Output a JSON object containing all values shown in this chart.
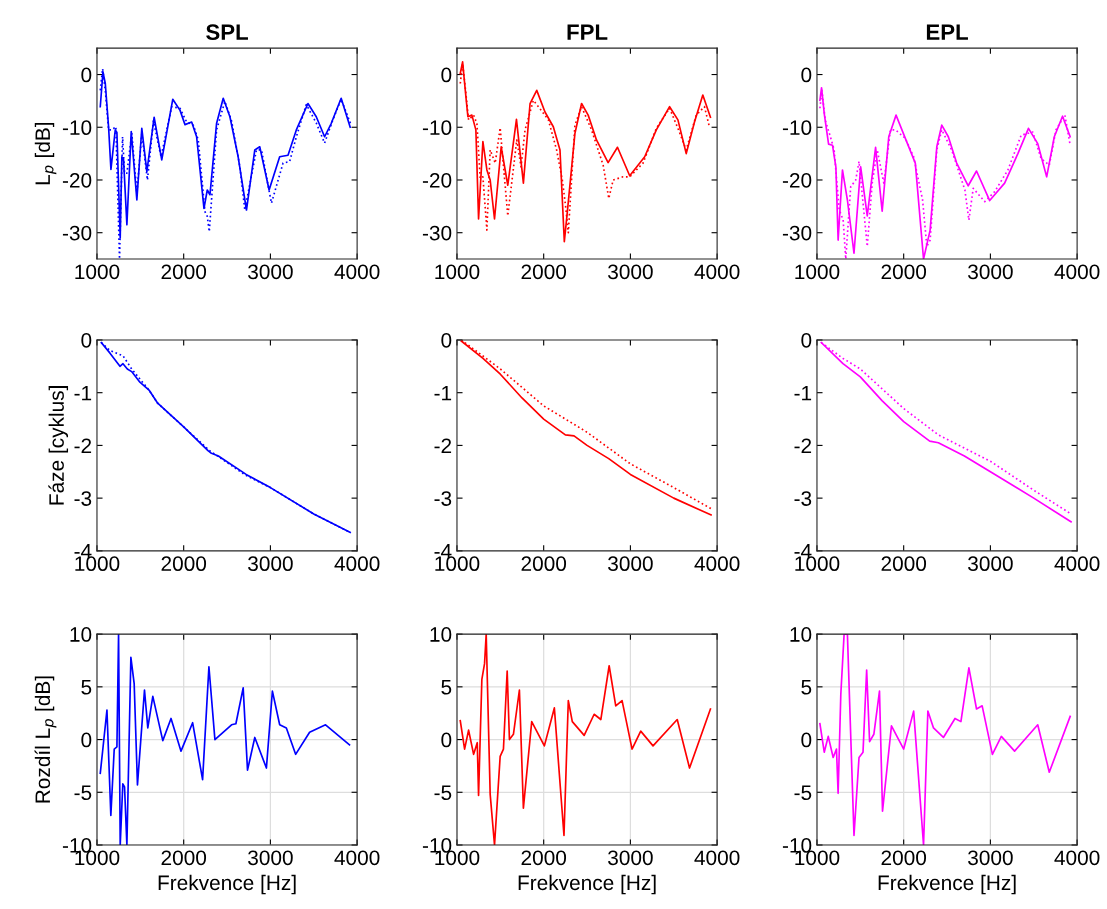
{
  "chart_data": [
    {
      "type": "line",
      "title": "SPL",
      "ylabel": "L$_{p}$ [dB]",
      "xlim": [
        1000,
        4000
      ],
      "xticks": [
        1000,
        2000,
        3000,
        4000
      ],
      "ylim": [
        -35,
        5
      ],
      "yticks": [
        -30,
        -20,
        -10,
        0
      ],
      "grid": false,
      "series": [
        {
          "color": "#0000ff",
          "line_style": "solid",
          "x": [
            1038,
            1069,
            1096,
            1134,
            1161,
            1211,
            1230,
            1268,
            1287,
            1306,
            1345,
            1395,
            1460,
            1517,
            1575,
            1659,
            1747,
            1874,
            1958,
            2015,
            2092,
            2149,
            2234,
            2272,
            2303,
            2379,
            2456,
            2533,
            2628,
            2724,
            2820,
            2877,
            2985,
            3107,
            3203,
            3299,
            3433,
            3529,
            3625,
            3701,
            3816,
            3920
          ],
          "values": [
            -6.1,
            0.5,
            -1.7,
            -10,
            -18,
            -10.5,
            -11,
            -31,
            -15.6,
            -16,
            -28.5,
            -10.8,
            -23.8,
            -10.2,
            -18.4,
            -8.1,
            -16.2,
            -4.7,
            -6.8,
            -9.5,
            -9,
            -11.8,
            -25.4,
            -21.9,
            -22.8,
            -9.3,
            -4.5,
            -8,
            -15.6,
            -25.7,
            -14.3,
            -13.7,
            -21.9,
            -15.6,
            -15.3,
            -10.5,
            -5.5,
            -8,
            -11.8,
            -9.3,
            -4.5,
            -10
          ]
        },
        {
          "color": "#0000ff",
          "line_style": "dotted",
          "x": [
            1038,
            1065,
            1096,
            1134,
            1172,
            1218,
            1260,
            1295,
            1318,
            1345,
            1402,
            1460,
            1517,
            1582,
            1651,
            1739,
            1862,
            1958,
            2034,
            2111,
            2168,
            2245,
            2272,
            2295,
            2379,
            2475,
            2552,
            2648,
            2705,
            2839,
            2897,
            3012,
            3146,
            3222,
            3299,
            3414,
            3529,
            3625,
            3720,
            3816,
            3931
          ],
          "values": [
            -3,
            1.1,
            -3,
            -10.5,
            -10.5,
            -9.9,
            -35,
            -11.8,
            -18.7,
            -18.7,
            -11.2,
            -22.5,
            -11.2,
            -20,
            -8.8,
            -15.6,
            -6.1,
            -6.4,
            -9,
            -9.6,
            -12.4,
            -26,
            -26.9,
            -29.8,
            -10.5,
            -5.1,
            -8.8,
            -17.5,
            -25.7,
            -14.3,
            -14.3,
            -24.4,
            -16.8,
            -16.5,
            -11.8,
            -5.7,
            -9.2,
            -13,
            -8.6,
            -4.7,
            -9.6
          ]
        }
      ]
    },
    {
      "type": "line",
      "title": "FPL",
      "xlim": [
        1000,
        4000
      ],
      "xticks": [
        1000,
        2000,
        3000,
        4000
      ],
      "ylim": [
        -35,
        5
      ],
      "yticks": [
        -30,
        -20,
        -10,
        0
      ],
      "grid": false,
      "series": [
        {
          "color": "#ff0000",
          "line_style": "solid",
          "x": [
            1038,
            1065,
            1096,
            1126,
            1172,
            1218,
            1249,
            1299,
            1345,
            1383,
            1433,
            1510,
            1586,
            1686,
            1766,
            1843,
            1920,
            2015,
            2111,
            2188,
            2238,
            2272,
            2360,
            2437,
            2513,
            2609,
            2743,
            2851,
            2992,
            3165,
            3299,
            3452,
            3548,
            3644,
            3739,
            3835,
            3923
          ],
          "values": [
            0.2,
            2.4,
            -3,
            -8,
            -7.7,
            -10.5,
            -27.4,
            -12.7,
            -18.1,
            -20,
            -27.4,
            -13.7,
            -21,
            -8.5,
            -20.6,
            -5.5,
            -3,
            -7.1,
            -9.9,
            -14.3,
            -31.7,
            -26.2,
            -11.2,
            -5.5,
            -7.7,
            -12.4,
            -16.7,
            -13.8,
            -19.2,
            -15.6,
            -10.5,
            -6.1,
            -8.6,
            -15,
            -9,
            -3.9,
            -8.1
          ]
        },
        {
          "color": "#ff0000",
          "line_style": "dotted",
          "x": [
            1038,
            1065,
            1103,
            1134,
            1192,
            1230,
            1268,
            1299,
            1345,
            1383,
            1441,
            1498,
            1586,
            1690,
            1739,
            1785,
            1881,
            1939,
            2054,
            2149,
            2215,
            2253,
            2284,
            2360,
            2437,
            2552,
            2686,
            2751,
            2801,
            2916,
            2992,
            3146,
            3299,
            3452,
            3548,
            3644,
            3759,
            3854,
            3912
          ],
          "values": [
            -1.7,
            2.1,
            -3.6,
            -8.6,
            -7.7,
            -9.3,
            -19.7,
            -19.4,
            -29.5,
            -14.3,
            -16.8,
            -10.1,
            -26.8,
            -12.4,
            -17.5,
            -10.5,
            -4.9,
            -6.1,
            -8.6,
            -14.3,
            -20,
            -25,
            -30,
            -9.6,
            -6.1,
            -10.5,
            -17.2,
            -23.5,
            -20,
            -19.4,
            -19.4,
            -16.8,
            -10.2,
            -6.4,
            -10.2,
            -14.3,
            -7.7,
            -6.1,
            -10
          ]
        }
      ]
    },
    {
      "type": "line",
      "title": "EPL",
      "xlim": [
        1000,
        4000
      ],
      "xticks": [
        1000,
        2000,
        3000,
        4000
      ],
      "ylim": [
        -35,
        5
      ],
      "yticks": [
        -30,
        -20,
        -10,
        0
      ],
      "grid": false,
      "series": [
        {
          "color": "#ff00ff",
          "line_style": "solid",
          "x": [
            1034,
            1053,
            1084,
            1134,
            1179,
            1218,
            1244,
            1294,
            1351,
            1427,
            1504,
            1580,
            1676,
            1752,
            1828,
            1912,
            2019,
            2134,
            2229,
            2305,
            2382,
            2439,
            2515,
            2611,
            2744,
            2840,
            2992,
            3164,
            3317,
            3439,
            3546,
            3649,
            3737,
            3832,
            3920
          ],
          "values": [
            -4.9,
            -2.5,
            -7.4,
            -13.2,
            -13.4,
            -17.5,
            -31.4,
            -18.1,
            -23.8,
            -33.9,
            -17.5,
            -26.8,
            -13.8,
            -25.9,
            -11.8,
            -7.7,
            -12.1,
            -16.8,
            -35,
            -29.5,
            -13.7,
            -9.6,
            -11.8,
            -16.8,
            -21.1,
            -18.3,
            -23.9,
            -20.6,
            -15,
            -10.2,
            -13.1,
            -19.4,
            -11.8,
            -7.9,
            -11.8
          ]
        },
        {
          "color": "#ff00ff",
          "line_style": "dotted",
          "x": [
            1034,
            1057,
            1095,
            1160,
            1198,
            1256,
            1302,
            1332,
            1389,
            1447,
            1485,
            1580,
            1637,
            1695,
            1771,
            1847,
            1905,
            2019,
            2115,
            2218,
            2267,
            2305,
            2382,
            2439,
            2553,
            2706,
            2752,
            2802,
            2935,
            3050,
            3202,
            3355,
            3489,
            3584,
            3679,
            3756,
            3859,
            3920
          ],
          "values": [
            -6.4,
            -3,
            -8.6,
            -12.1,
            -14.3,
            -25.6,
            -27.6,
            -35,
            -21.3,
            -20,
            -16.5,
            -32.6,
            -20.6,
            -14.3,
            -20.6,
            -10.5,
            -10.5,
            -12.1,
            -15.6,
            -23.8,
            -32.6,
            -31.4,
            -14.3,
            -10.5,
            -14.3,
            -21.9,
            -27.6,
            -21.6,
            -24.1,
            -22.2,
            -18.1,
            -11.5,
            -10.9,
            -15.9,
            -17.2,
            -10.5,
            -7.7,
            -13.4
          ]
        }
      ]
    },
    {
      "type": "line",
      "ylabel": "Fáze [cyklus]",
      "xlim": [
        1000,
        4000
      ],
      "xticks": [
        1000,
        2000,
        3000,
        4000
      ],
      "ylim": [
        -4,
        0
      ],
      "yticks": [
        -4,
        -3,
        -2,
        -1,
        0
      ],
      "grid": false,
      "series": [
        {
          "color": "#0000ff",
          "line_style": "solid",
          "x": [
            1050,
            1150,
            1265,
            1300,
            1350,
            1400,
            1495,
            1600,
            1700,
            2000,
            2280,
            2320,
            2400,
            2720,
            3000,
            3500,
            3920
          ],
          "values": [
            -0.05,
            -0.25,
            -0.5,
            -0.45,
            -0.55,
            -0.6,
            -0.8,
            -0.95,
            -1.2,
            -1.65,
            -2.1,
            -2.15,
            -2.2,
            -2.55,
            -2.8,
            -3.3,
            -3.65
          ]
        },
        {
          "color": "#0000ff",
          "line_style": "dotted",
          "x": [
            1050,
            1150,
            1300,
            1400,
            1500,
            1600,
            1700,
            2000,
            2300,
            2700,
            3000,
            3500,
            3920
          ],
          "values": [
            -0.05,
            -0.2,
            -0.3,
            -0.55,
            -0.75,
            -0.95,
            -1.2,
            -1.65,
            -2.1,
            -2.55,
            -2.8,
            -3.3,
            -3.65
          ]
        }
      ]
    },
    {
      "type": "line",
      "xlim": [
        1000,
        4000
      ],
      "xticks": [
        1000,
        2000,
        3000,
        4000
      ],
      "ylim": [
        -4,
        0
      ],
      "yticks": [
        -4,
        -3,
        -2,
        -1,
        0
      ],
      "grid": false,
      "series": [
        {
          "color": "#ff0000",
          "line_style": "solid",
          "x": [
            1050,
            1300,
            1500,
            1750,
            2000,
            2250,
            2350,
            2500,
            2750,
            3000,
            3500,
            3930
          ],
          "values": [
            -0.02,
            -0.35,
            -0.65,
            -1.1,
            -1.5,
            -1.8,
            -1.82,
            -2.0,
            -2.25,
            -2.55,
            -3.0,
            -3.32
          ]
        },
        {
          "color": "#ff0000",
          "line_style": "dotted",
          "x": [
            1050,
            1500,
            2000,
            2500,
            3000,
            3500,
            3930
          ],
          "values": [
            0,
            -0.55,
            -1.25,
            -1.75,
            -2.35,
            -2.8,
            -3.2
          ]
        }
      ]
    },
    {
      "type": "line",
      "xlim": [
        1000,
        4000
      ],
      "xticks": [
        1000,
        2000,
        3000,
        4000
      ],
      "ylim": [
        -4,
        0
      ],
      "yticks": [
        -4,
        -3,
        -2,
        -1,
        0
      ],
      "grid": false,
      "series": [
        {
          "color": "#ff00ff",
          "line_style": "solid",
          "x": [
            1050,
            1300,
            1500,
            1750,
            2000,
            2300,
            2400,
            2700,
            3000,
            3500,
            3930
          ],
          "values": [
            -0.05,
            -0.45,
            -0.7,
            -1.15,
            -1.55,
            -1.92,
            -1.95,
            -2.2,
            -2.5,
            -3.0,
            -3.45
          ]
        },
        {
          "color": "#ff00ff",
          "line_style": "dotted",
          "x": [
            1050,
            1300,
            1500,
            2000,
            2400,
            3000,
            3500,
            3930
          ],
          "values": [
            -0.05,
            -0.35,
            -0.55,
            -1.3,
            -1.8,
            -2.3,
            -2.85,
            -3.3
          ]
        }
      ]
    },
    {
      "type": "line",
      "ylabel": "Rozdíl L$_{p}$ [dB]",
      "xlabel": "Frekvence [Hz]",
      "xlim": [
        1000,
        4000
      ],
      "xticks": [
        1000,
        2000,
        3000,
        4000
      ],
      "ylim": [
        -10,
        10
      ],
      "yticks": [
        -10,
        -5,
        0,
        5,
        10
      ],
      "grid": true,
      "series": [
        {
          "color": "#0000ff",
          "line_style": "solid",
          "x": [
            1038,
            1069,
            1115,
            1160,
            1199,
            1230,
            1249,
            1268,
            1298,
            1318,
            1345,
            1391,
            1429,
            1467,
            1548,
            1586,
            1644,
            1759,
            1854,
            1969,
            2103,
            2218,
            2291,
            2360,
            2552,
            2602,
            2686,
            2736,
            2820,
            2954,
            3023,
            3107,
            3184,
            3291,
            3452,
            3636,
            3912
          ],
          "values": [
            -3.2,
            -0.8,
            2.8,
            -7.2,
            -0.9,
            -0.7,
            10,
            -10,
            -4.2,
            -4.5,
            -10,
            7.8,
            5.3,
            -4.3,
            4.7,
            1.1,
            4.1,
            -0.1,
            2,
            -1.1,
            1.6,
            -3.8,
            6.9,
            0,
            1.4,
            1.5,
            4.9,
            -2.9,
            0.2,
            -2.7,
            4.6,
            1.4,
            1.1,
            -1.4,
            0.7,
            1.4,
            -0.5
          ]
        }
      ]
    },
    {
      "type": "line",
      "xlabel": "Frekvence [Hz]",
      "xlim": [
        1000,
        4000
      ],
      "xticks": [
        1000,
        2000,
        3000,
        4000
      ],
      "ylim": [
        -10,
        10
      ],
      "yticks": [
        -10,
        -5,
        0,
        5,
        10
      ],
      "grid": true,
      "series": [
        {
          "color": "#ff0000",
          "line_style": "solid",
          "x": [
            1038,
            1088,
            1134,
            1192,
            1234,
            1249,
            1287,
            1318,
            1337,
            1383,
            1433,
            1498,
            1536,
            1579,
            1605,
            1651,
            1720,
            1766,
            1862,
            2008,
            2123,
            2234,
            2284,
            2330,
            2467,
            2582,
            2659,
            2755,
            2831,
            2904,
            3019,
            3119,
            3261,
            3540,
            3682,
            3923
          ],
          "values": [
            1.8,
            -0.9,
            0.9,
            -1.4,
            -0.3,
            -5.3,
            5.7,
            7.2,
            10,
            -5.2,
            -10,
            -1.6,
            -0.9,
            6.5,
            0,
            0.5,
            4.7,
            -6.5,
            1.7,
            -0.6,
            3,
            -9.1,
            3.7,
            1.7,
            0.4,
            2.4,
            1.9,
            7,
            3.2,
            3.7,
            -0.9,
            0.8,
            -0.6,
            1.9,
            -2.7,
            2.9
          ]
        }
      ]
    },
    {
      "type": "line",
      "xlabel": "Frekvence [Hz]",
      "xlim": [
        1000,
        4000
      ],
      "xticks": [
        1000,
        2000,
        3000,
        4000
      ],
      "ylim": [
        -10,
        10
      ],
      "yticks": [
        -10,
        -5,
        0,
        5,
        10
      ],
      "grid": true,
      "series": [
        {
          "color": "#ff00ff",
          "line_style": "solid",
          "x": [
            1034,
            1084,
            1130,
            1187,
            1225,
            1244,
            1275,
            1313,
            1351,
            1427,
            1485,
            1531,
            1573,
            1607,
            1656,
            1721,
            1756,
            1859,
            2000,
            2115,
            2229,
            2279,
            2344,
            2458,
            2592,
            2660,
            2752,
            2840,
            2905,
            3023,
            3126,
            3279,
            3546,
            3679,
            3920
          ],
          "values": [
            1.5,
            -1.2,
            0.3,
            -1.7,
            -0.9,
            -5.1,
            4.3,
            10,
            10,
            -9.1,
            -1.7,
            -1.2,
            6.6,
            -0.2,
            0.5,
            4.6,
            -6.8,
            1.3,
            -0.9,
            2.7,
            -10,
            2.7,
            1.1,
            0.2,
            2,
            1.7,
            6.8,
            2.9,
            3.2,
            -1.4,
            0.3,
            -1.1,
            1.4,
            -3.1,
            2.2
          ]
        }
      ]
    }
  ]
}
